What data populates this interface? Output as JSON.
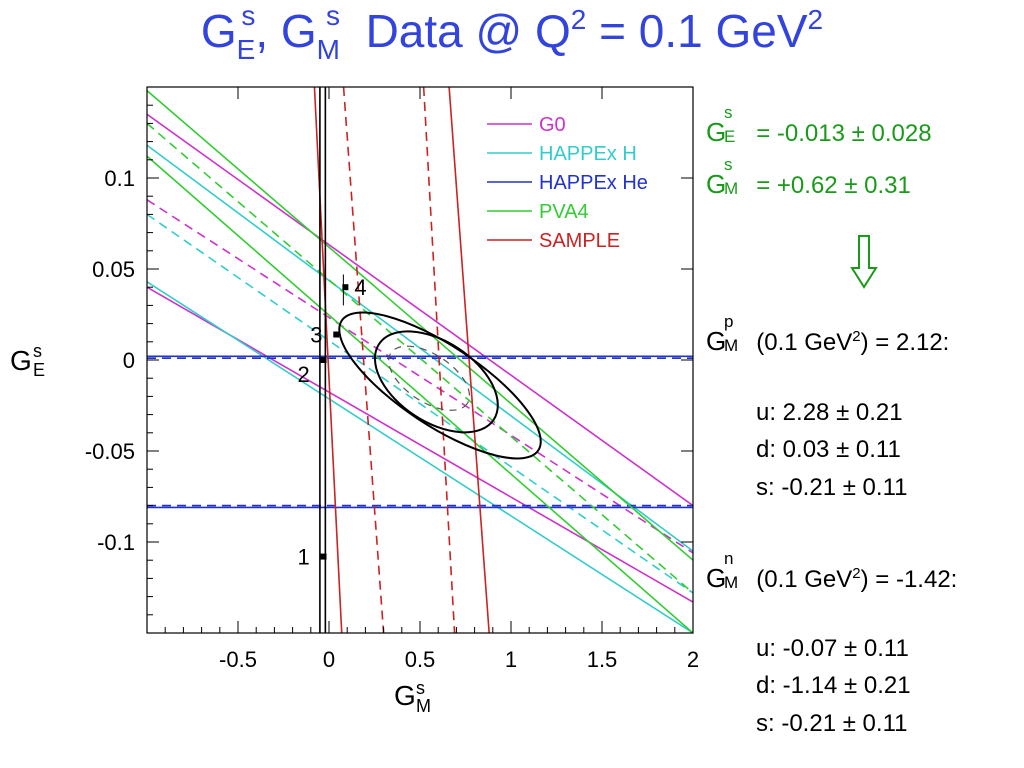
{
  "title": {
    "g": "G",
    "sup_s1": "s",
    "sub_e": "E",
    "comma": ",",
    "g2": "G",
    "sup_s2": "s",
    "sub_m": "M",
    "rest": "Data @ Q",
    "sup2": "2",
    "eq": "= 0.1 GeV",
    "sup2b": "2"
  },
  "results": {
    "ge_label": "G",
    "ge_sup": "s",
    "ge_sub": "E",
    "ge_value": "= -0.013 ± 0.028",
    "gm_label": "G",
    "gm_sup": "s",
    "gm_sub": "M",
    "gm_value": "= +0.62 ± 0.31"
  },
  "proton": {
    "label": "G",
    "sup": "p",
    "sub": "M",
    "text": "(0.1 GeV",
    "text_sup": "2",
    "text_end": ") = 2.12:",
    "u": "u: 2.28 ± 0.21",
    "d": "d: 0.03 ± 0.11",
    "s": "s: -0.21 ± 0.11"
  },
  "neutron": {
    "label": "G",
    "sup": "n",
    "sub": "M",
    "text": "(0.1 GeV",
    "text_sup": "2",
    "text_end": ") = -1.42:",
    "u": "u: -0.07 ± 0.11",
    "d": "d: -1.14 ± 0.21",
    "s": "s: -0.21 ± 0.11"
  },
  "colors": {
    "title": "#3344dd",
    "G0": "#cc33cc",
    "HAPPEx H": "#33cccc",
    "HAPPEx He": "#2233cc",
    "PVA4": "#33cc33",
    "SAMPLE": "#cc2222",
    "result_text": "#1a9a1a"
  },
  "chart_data": {
    "type": "scatter",
    "title": "",
    "xlabel_main": "G",
    "xlabel_sup": "s",
    "xlabel_sub": "M",
    "ylabel_main": "G",
    "ylabel_sup": "s",
    "ylabel_sub": "E",
    "xlim": [
      -1.0,
      2.0
    ],
    "ylim": [
      -0.15,
      0.15
    ],
    "x_ticks": [
      -0.5,
      0,
      0.5,
      1,
      1.5,
      2
    ],
    "x_tick_labels": [
      "-0.5",
      "0",
      "0.5",
      "1",
      "1.5",
      "2"
    ],
    "y_ticks": [
      -0.1,
      -0.05,
      0,
      0.05,
      0.1
    ],
    "y_tick_labels": [
      "-0.1",
      "-0.05",
      "0",
      "0.05",
      "0.1"
    ],
    "legend": {
      "position": "top-right",
      "entries": [
        {
          "name": "G0",
          "color": "#cc33cc"
        },
        {
          "name": "HAPPEx H",
          "color": "#33cccc"
        },
        {
          "name": "HAPPEx He",
          "color": "#2233cc"
        },
        {
          "name": "PVA4",
          "color": "#33cc33"
        },
        {
          "name": "SAMPLE",
          "color": "#cc2222"
        }
      ]
    },
    "bands": [
      {
        "name": "G0",
        "color": "#cc33cc",
        "lines": [
          {
            "x1": -1.0,
            "y1": 0.135,
            "x2": 2.0,
            "y2": -0.08,
            "style": "solid"
          },
          {
            "x1": -1.0,
            "y1": 0.04,
            "x2": 2.0,
            "y2": -0.133,
            "style": "solid"
          },
          {
            "x1": -1.0,
            "y1": 0.088,
            "x2": 2.0,
            "y2": -0.106,
            "style": "dashed"
          }
        ]
      },
      {
        "name": "HAPPEx H",
        "color": "#33cccc",
        "lines": [
          {
            "x1": -1.0,
            "y1": 0.118,
            "x2": 2.0,
            "y2": -0.105,
            "style": "solid"
          },
          {
            "x1": -1.0,
            "y1": 0.043,
            "x2": 2.0,
            "y2": -0.15,
            "style": "solid"
          },
          {
            "x1": -1.0,
            "y1": 0.08,
            "x2": 2.0,
            "y2": -0.128,
            "style": "dashed"
          }
        ]
      },
      {
        "name": "HAPPEx He",
        "color": "#2233cc",
        "lines": [
          {
            "x1": -1.0,
            "y1": 0.002,
            "x2": 2.0,
            "y2": 0.002,
            "style": "solid"
          },
          {
            "x1": -1.0,
            "y1": -0.081,
            "x2": 2.0,
            "y2": -0.081,
            "style": "solid"
          },
          {
            "x1": -1.0,
            "y1": -0.08,
            "x2": 2.0,
            "y2": -0.08,
            "style": "dashed"
          },
          {
            "x1": -1.0,
            "y1": 0.001,
            "x2": 2.0,
            "y2": 0.001,
            "style": "dashed"
          }
        ]
      },
      {
        "name": "PVA4",
        "color": "#33cc33",
        "lines": [
          {
            "x1": -1.0,
            "y1": 0.148,
            "x2": 2.0,
            "y2": -0.11,
            "style": "solid"
          },
          {
            "x1": -1.0,
            "y1": 0.112,
            "x2": 2.0,
            "y2": -0.15,
            "style": "solid"
          },
          {
            "x1": -1.0,
            "y1": 0.13,
            "x2": 2.0,
            "y2": -0.128,
            "style": "dashed"
          }
        ]
      },
      {
        "name": "SAMPLE",
        "color": "#cc2222",
        "lines": [
          {
            "x1": -0.08,
            "y1": 0.15,
            "x2": 0.07,
            "y2": -0.15,
            "style": "solid"
          },
          {
            "x1": 0.66,
            "y1": 0.15,
            "x2": 0.88,
            "y2": -0.15,
            "style": "solid"
          },
          {
            "x1": 0.08,
            "y1": 0.15,
            "x2": 0.3,
            "y2": -0.15,
            "style": "dashed"
          },
          {
            "x1": 0.52,
            "y1": 0.15,
            "x2": 0.69,
            "y2": -0.15,
            "style": "dashed"
          }
        ]
      },
      {
        "name": "vertical",
        "color": "#000000",
        "lines": [
          {
            "x1": -0.05,
            "y1": 0.15,
            "x2": -0.05,
            "y2": -0.15,
            "style": "solid"
          },
          {
            "x1": -0.02,
            "y1": 0.15,
            "x2": -0.02,
            "y2": -0.15,
            "style": "solid"
          }
        ]
      }
    ],
    "ellipses": [
      {
        "cx": 0.61,
        "cy": -0.014,
        "rx": 1.08,
        "ry": 0.022,
        "angle": -0.066,
        "style": "solid"
      },
      {
        "cx": 0.59,
        "cy": -0.012,
        "rx": 0.63,
        "ry": 0.022,
        "angle": -0.066,
        "style": "solid"
      },
      {
        "cx": 0.55,
        "cy": -0.01,
        "rx": 0.42,
        "ry": 0.013,
        "angle": -0.066,
        "style": "dashed"
      }
    ],
    "points": [
      {
        "label": "1",
        "x": -0.03,
        "y": -0.108
      },
      {
        "label": "2",
        "x": -0.03,
        "y": 0.0
      },
      {
        "label": "3",
        "x": 0.04,
        "y": 0.014
      },
      {
        "label": "4",
        "x": 0.09,
        "y": 0.04
      }
    ]
  }
}
